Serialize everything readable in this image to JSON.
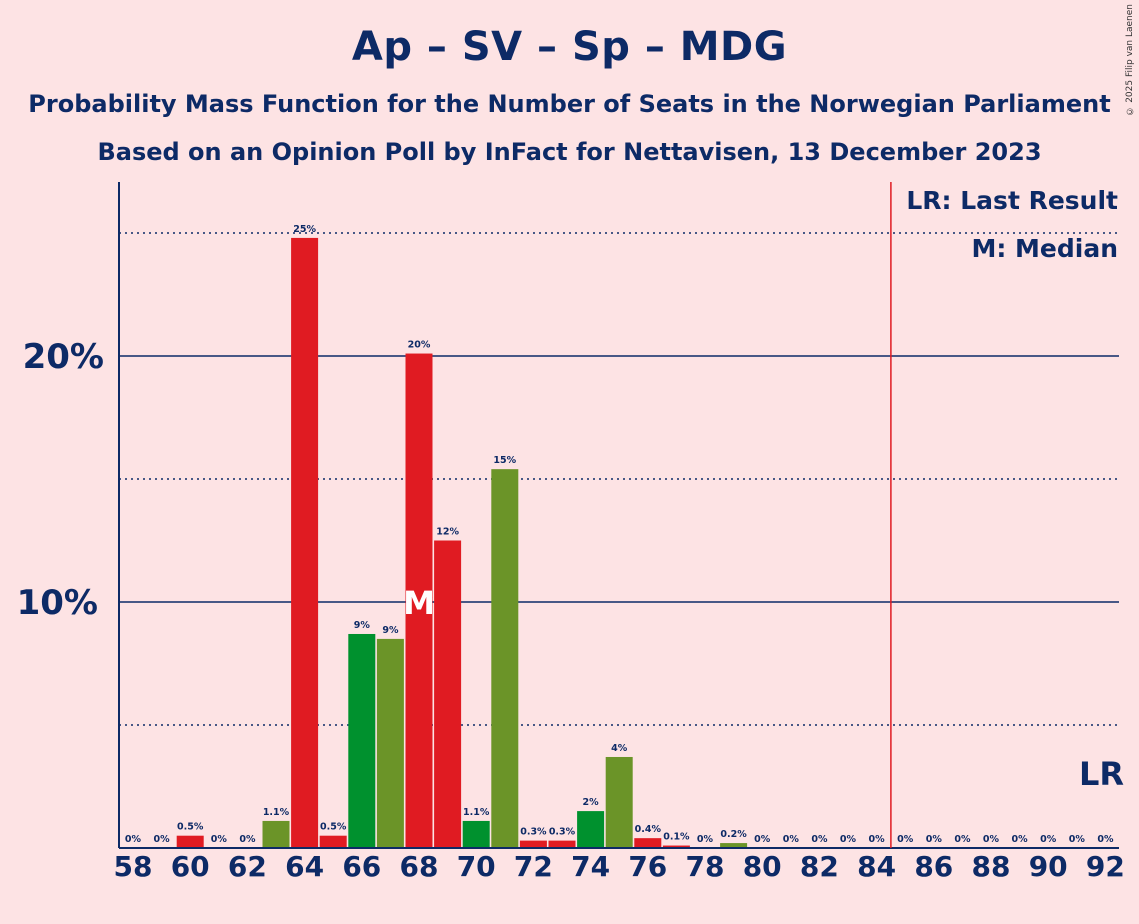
{
  "title": "Ap – SV – Sp – MDG",
  "subtitle": "Probability Mass Function for the Number of Seats in the Norwegian Parliament",
  "subtitle2": "Based on an Opinion Poll by InFact for Nettavisen, 13 December 2023",
  "copyright": "© 2025 Filip van Laenen",
  "legend": {
    "lr": "LR: Last Result",
    "m": "M: Median"
  },
  "markers": {
    "median_label": "M",
    "median_seat": 68,
    "lr_label": "LR",
    "last_result_seat": 85
  },
  "colors": {
    "background": "#FDE3E4",
    "red": "#E01B22",
    "green": "#00912E",
    "olive": "#6B9428",
    "navy": "#0D2A66",
    "lr_line": "#E01B22"
  },
  "chart_data": {
    "type": "bar",
    "ylim": [
      0,
      27
    ],
    "yticks_major": [
      {
        "value": 10,
        "label": "10%"
      },
      {
        "value": 20,
        "label": "20%"
      }
    ],
    "yticks_minor": [
      5,
      15,
      25
    ],
    "x_tick_labels": [
      "58",
      "60",
      "62",
      "64",
      "66",
      "68",
      "70",
      "72",
      "74",
      "76",
      "78",
      "80",
      "82",
      "84",
      "86",
      "88",
      "90",
      "92"
    ],
    "bars": [
      {
        "seat": 58,
        "value": 0,
        "label": "0%",
        "color": "red"
      },
      {
        "seat": 59,
        "value": 0,
        "label": "0%",
        "color": "red"
      },
      {
        "seat": 60,
        "value": 0.5,
        "label": "0.5%",
        "color": "red"
      },
      {
        "seat": 61,
        "value": 0,
        "label": "0%",
        "color": "red"
      },
      {
        "seat": 62,
        "value": 0,
        "label": "0%",
        "color": "red"
      },
      {
        "seat": 63,
        "value": 1.1,
        "label": "1.1%",
        "color": "olive"
      },
      {
        "seat": 64,
        "value": 24.8,
        "label": "25%",
        "color": "red"
      },
      {
        "seat": 65,
        "value": 0.5,
        "label": "0.5%",
        "color": "red"
      },
      {
        "seat": 66,
        "value": 8.7,
        "label": "9%",
        "color": "green"
      },
      {
        "seat": 67,
        "value": 8.5,
        "label": "9%",
        "color": "olive"
      },
      {
        "seat": 68,
        "value": 20.1,
        "label": "20%",
        "color": "red"
      },
      {
        "seat": 69,
        "value": 12.5,
        "label": "12%",
        "color": "red"
      },
      {
        "seat": 70,
        "value": 1.1,
        "label": "1.1%",
        "color": "green"
      },
      {
        "seat": 71,
        "value": 15.4,
        "label": "15%",
        "color": "olive"
      },
      {
        "seat": 72,
        "value": 0.3,
        "label": "0.3%",
        "color": "red"
      },
      {
        "seat": 73,
        "value": 0.3,
        "label": "0.3%",
        "color": "red"
      },
      {
        "seat": 74,
        "value": 1.5,
        "label": "2%",
        "color": "green"
      },
      {
        "seat": 75,
        "value": 3.7,
        "label": "4%",
        "color": "olive"
      },
      {
        "seat": 76,
        "value": 0.4,
        "label": "0.4%",
        "color": "red"
      },
      {
        "seat": 77,
        "value": 0.1,
        "label": "0.1%",
        "color": "red"
      },
      {
        "seat": 78,
        "value": 0,
        "label": "0%",
        "color": "red"
      },
      {
        "seat": 79,
        "value": 0.2,
        "label": "0.2%",
        "color": "olive"
      },
      {
        "seat": 80,
        "value": 0,
        "label": "0%",
        "color": "red"
      },
      {
        "seat": 81,
        "value": 0,
        "label": "0%",
        "color": "red"
      },
      {
        "seat": 82,
        "value": 0,
        "label": "0%",
        "color": "red"
      },
      {
        "seat": 83,
        "value": 0,
        "label": "0%",
        "color": "red"
      },
      {
        "seat": 84,
        "value": 0,
        "label": "0%",
        "color": "red"
      },
      {
        "seat": 85,
        "value": 0,
        "label": "0%",
        "color": "red"
      },
      {
        "seat": 86,
        "value": 0,
        "label": "0%",
        "color": "red"
      },
      {
        "seat": 87,
        "value": 0,
        "label": "0%",
        "color": "red"
      },
      {
        "seat": 88,
        "value": 0,
        "label": "0%",
        "color": "red"
      },
      {
        "seat": 89,
        "value": 0,
        "label": "0%",
        "color": "red"
      },
      {
        "seat": 90,
        "value": 0,
        "label": "0%",
        "color": "red"
      },
      {
        "seat": 91,
        "value": 0,
        "label": "0%",
        "color": "red"
      },
      {
        "seat": 92,
        "value": 0,
        "label": "0%",
        "color": "red"
      }
    ]
  }
}
